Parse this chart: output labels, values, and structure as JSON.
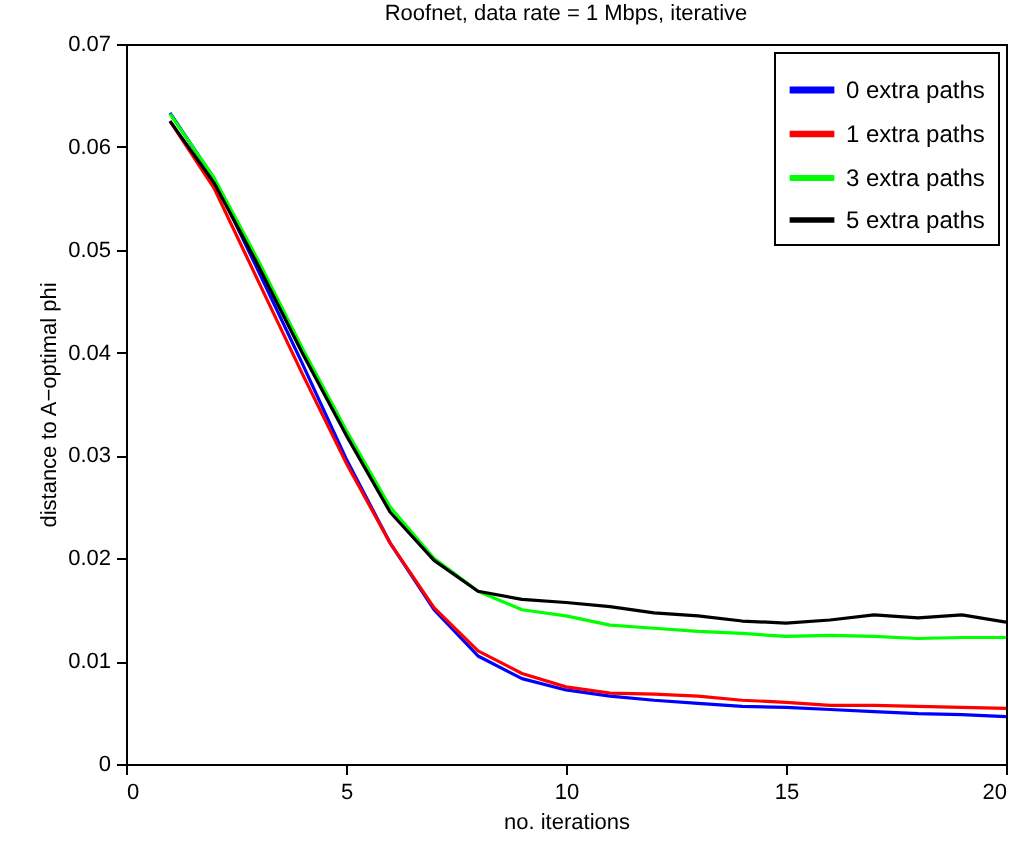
{
  "chart_data": {
    "type": "line",
    "title": "Roofnet, data rate = 1 Mbps, iterative",
    "xlabel": "no. iterations",
    "ylabel": "distance to A−optimal phi",
    "x": [
      1,
      2,
      3,
      4,
      5,
      6,
      7,
      8,
      9,
      10,
      11,
      12,
      13,
      14,
      15,
      16,
      17,
      18,
      19,
      20
    ],
    "xlim": [
      0,
      20
    ],
    "xticks": [
      0,
      5,
      10,
      15,
      20
    ],
    "ylim": [
      0,
      0.07
    ],
    "yticks": [
      0,
      0.01,
      0.02,
      0.03,
      0.04,
      0.05,
      0.06,
      0.07
    ],
    "grid": false,
    "legend": "top right",
    "marker": "none",
    "line_style": "solid",
    "series": [
      {
        "name": "0 extra paths",
        "color": "#0000ff",
        "values": [
          0.0633,
          0.0569,
          0.048,
          0.039,
          0.0297,
          0.0215,
          0.015,
          0.0105,
          0.0083,
          0.0072,
          0.0066,
          0.0062,
          0.0059,
          0.0056,
          0.0055,
          0.0053,
          0.0051,
          0.0049,
          0.0048,
          0.0046
        ]
      },
      {
        "name": "1 extra paths",
        "color": "#ff0000",
        "values": [
          0.0625,
          0.056,
          0.047,
          0.038,
          0.0293,
          0.0215,
          0.0152,
          0.011,
          0.0088,
          0.0075,
          0.0069,
          0.0068,
          0.0066,
          0.0062,
          0.006,
          0.0057,
          0.0057,
          0.0056,
          0.0055,
          0.0054
        ]
      },
      {
        "name": "3 extra paths",
        "color": "#00ff00",
        "values": [
          0.0632,
          0.057,
          0.049,
          0.0405,
          0.0325,
          0.025,
          0.02,
          0.0168,
          0.015,
          0.0144,
          0.0135,
          0.0132,
          0.0129,
          0.0127,
          0.0124,
          0.0125,
          0.0124,
          0.0122,
          0.0123,
          0.0123
        ]
      },
      {
        "name": "5 extra paths",
        "color": "#000000",
        "values": [
          0.0625,
          0.0565,
          0.0485,
          0.04,
          0.032,
          0.0245,
          0.0198,
          0.0168,
          0.016,
          0.0157,
          0.0153,
          0.0147,
          0.0144,
          0.0139,
          0.0137,
          0.014,
          0.0145,
          0.0142,
          0.0145,
          0.0138
        ]
      }
    ]
  }
}
